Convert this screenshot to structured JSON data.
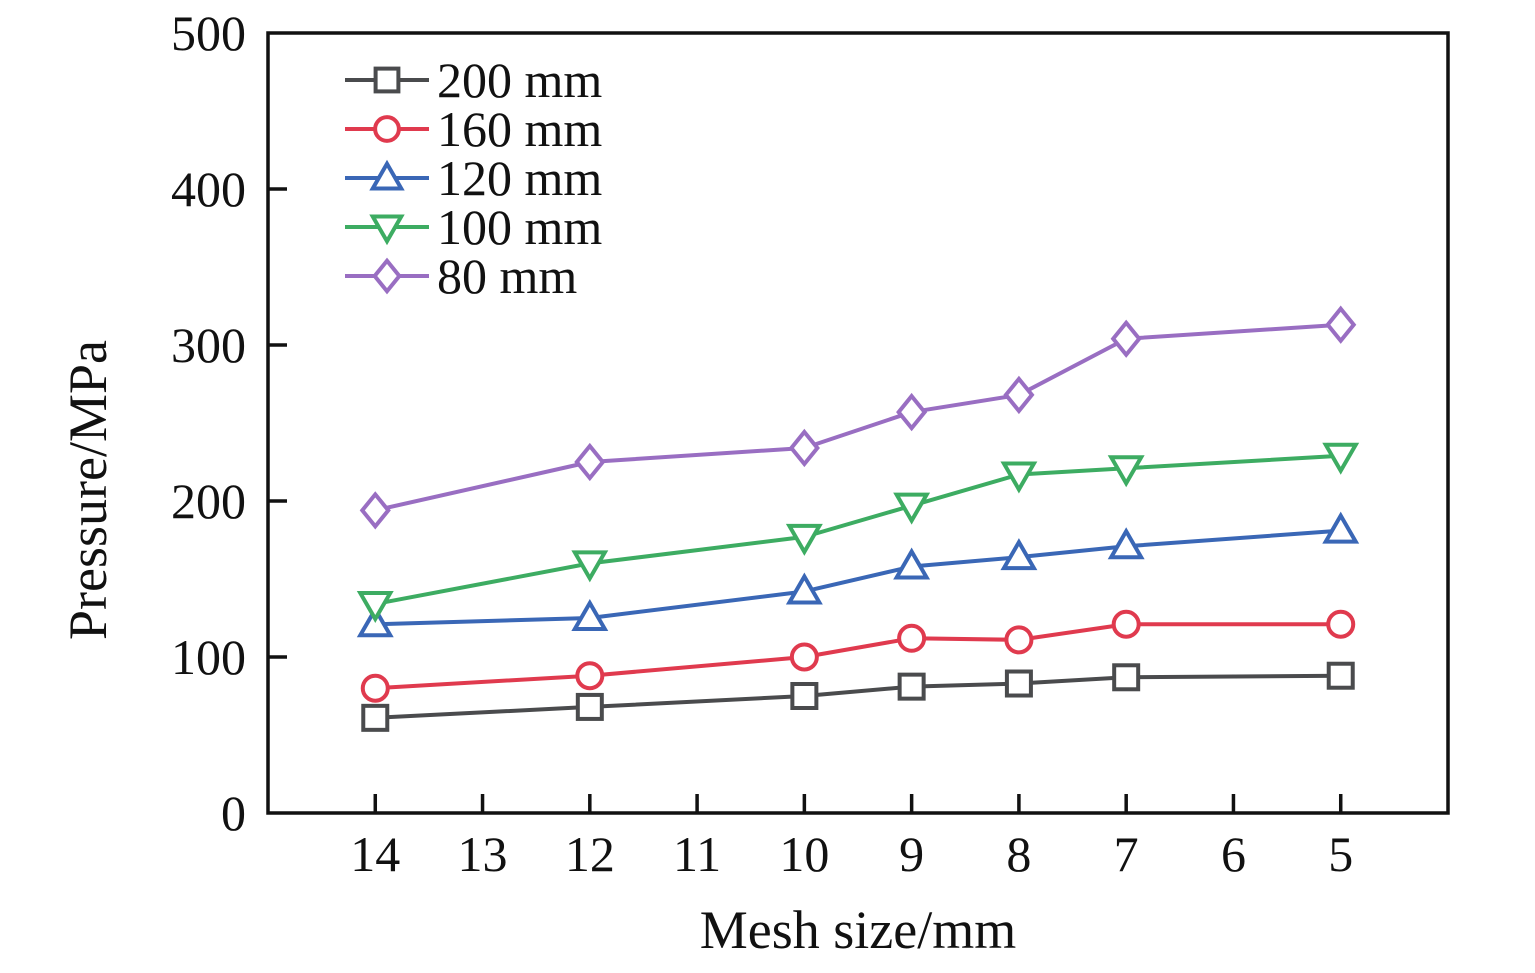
{
  "figure": {
    "background": "#ffffff",
    "axis_color": "#111111"
  },
  "chart_data": {
    "type": "line",
    "title": "",
    "xlabel": "Mesh size/mm",
    "ylabel": "Pressure/MPa",
    "x_tick_labels": [
      "14",
      "13",
      "12",
      "11",
      "10",
      "9",
      "8",
      "7",
      "6",
      "5"
    ],
    "y_tick_labels": [
      "0",
      "100",
      "200",
      "300",
      "400",
      "500"
    ],
    "ylim": [
      0,
      500
    ],
    "categories": [
      14,
      12,
      10,
      9,
      8,
      7,
      5
    ],
    "series": [
      {
        "name": "200 mm",
        "marker": "square",
        "color": "#4a4b4d",
        "values": [
          61,
          68,
          75,
          81,
          83,
          87,
          88
        ]
      },
      {
        "name": "160 mm",
        "marker": "circle",
        "color": "#e03a4e",
        "values": [
          80,
          88,
          100,
          112,
          111,
          121,
          121
        ]
      },
      {
        "name": "120 mm",
        "marker": "triangle-up",
        "color": "#3a67b6",
        "values": [
          121,
          125,
          142,
          158,
          164,
          171,
          181
        ]
      },
      {
        "name": "100 mm",
        "marker": "triangle-down",
        "color": "#3dac62",
        "values": [
          134,
          160,
          177,
          197,
          217,
          221,
          229
        ]
      },
      {
        "name": "80 mm",
        "marker": "diamond",
        "color": "#996ec2",
        "values": [
          194,
          225,
          234,
          257,
          268,
          304,
          313
        ]
      }
    ],
    "legend_position": "upper-left",
    "grid": false,
    "frame": true,
    "x_axis_direction": "decreasing",
    "ticks": "inward, bottom and left only"
  }
}
